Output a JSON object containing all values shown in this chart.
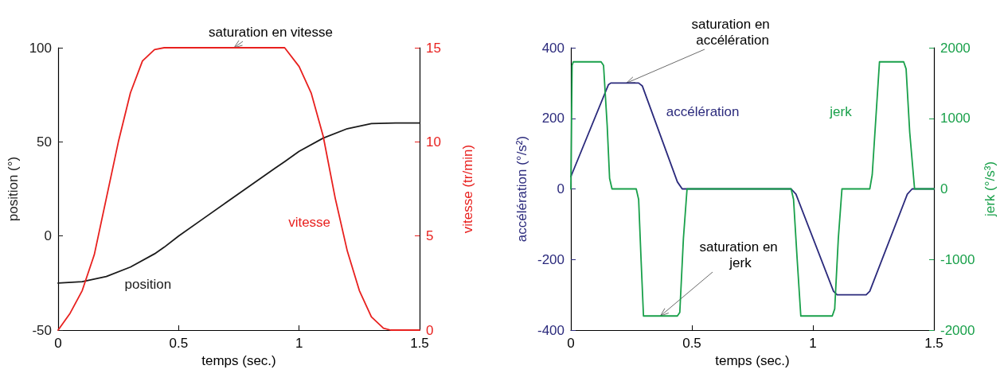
{
  "chart_data": [
    {
      "type": "line",
      "xlabel": "temps (sec.)",
      "ylabel": "position (°)",
      "y2label": "vitesse (tr/min)",
      "xlim": [
        0,
        1.5
      ],
      "xticks": [
        0,
        0.5,
        1,
        1.5
      ],
      "ylim": [
        -50,
        100
      ],
      "yticks": [
        -50,
        0,
        50,
        100
      ],
      "y2lim": [
        0,
        15
      ],
      "y2ticks": [
        0,
        5,
        10,
        15
      ],
      "grid": false,
      "series": [
        {
          "name": "position",
          "color": "#1a1a1a",
          "x": [
            0,
            0.1,
            0.2,
            0.3,
            0.4,
            0.44,
            0.5,
            0.6,
            0.7,
            0.8,
            0.9,
            0.94,
            1.0,
            1.1,
            1.2,
            1.3,
            1.4,
            1.5
          ],
          "values": [
            -25,
            -24.3,
            -21.5,
            -16.5,
            -9.5,
            -6,
            0,
            9,
            18,
            27,
            36,
            39.5,
            45,
            52,
            57,
            59.7,
            60,
            60
          ]
        },
        {
          "name": "vitesse",
          "color": "#e8201e",
          "axis": "y2",
          "x": [
            0,
            0.05,
            0.1,
            0.15,
            0.2,
            0.25,
            0.3,
            0.35,
            0.4,
            0.44,
            0.94,
            1.0,
            1.05,
            1.1,
            1.15,
            1.2,
            1.25,
            1.3,
            1.35,
            1.38,
            1.5
          ],
          "values": [
            0,
            0.9,
            2.1,
            4,
            7,
            10,
            12.6,
            14.3,
            14.9,
            15,
            15,
            14,
            12.6,
            10.3,
            7,
            4.2,
            2.1,
            0.7,
            0.1,
            0,
            0
          ]
        }
      ],
      "annotations": [
        {
          "text": "saturation en vitesse",
          "x": 0.73,
          "y": 100
        }
      ]
    },
    {
      "type": "line",
      "xlabel": "temps (sec.)",
      "ylabel": "accélération (°/s²)",
      "y2label": "jerk (°/s³)",
      "xlim": [
        0,
        1.5
      ],
      "xticks": [
        0,
        0.5,
        1,
        1.5
      ],
      "ylim": [
        -400,
        400
      ],
      "yticks": [
        -400,
        -200,
        0,
        200,
        400
      ],
      "y2lim": [
        -2000,
        2000
      ],
      "y2ticks": [
        -2000,
        -1000,
        0,
        1000,
        2000
      ],
      "grid": false,
      "series": [
        {
          "name": "accélération",
          "color": "#2b2a7c",
          "x": [
            0,
            0.155,
            0.165,
            0.28,
            0.295,
            0.44,
            0.46,
            0.91,
            0.93,
            1.085,
            1.1,
            1.22,
            1.235,
            1.39,
            1.41,
            1.5
          ],
          "values": [
            35,
            295,
            300,
            300,
            292,
            20,
            0,
            0,
            -15,
            -290,
            -300,
            -300,
            -290,
            -15,
            0,
            0
          ]
        },
        {
          "name": "jerk",
          "color": "#19a04a",
          "axis": "y2",
          "x": [
            0,
            0.005,
            0.01,
            0.125,
            0.135,
            0.15,
            0.16,
            0.17,
            0.27,
            0.28,
            0.29,
            0.3,
            0.44,
            0.45,
            0.465,
            0.48,
            0.91,
            0.92,
            0.935,
            0.95,
            1.08,
            1.09,
            1.105,
            1.12,
            1.235,
            1.245,
            1.26,
            1.275,
            1.375,
            1.385,
            1.4,
            1.42,
            1.5
          ],
          "values": [
            0,
            1750,
            1800,
            1800,
            1750,
            900,
            150,
            0,
            0,
            -150,
            -1000,
            -1800,
            -1800,
            -1750,
            -700,
            0,
            0,
            -150,
            -1000,
            -1800,
            -1800,
            -1700,
            -700,
            0,
            0,
            200,
            1000,
            1800,
            1800,
            1700,
            800,
            0,
            0
          ]
        }
      ],
      "annotations": [
        {
          "text": "saturation en accélération",
          "x": 0.23,
          "y": 300
        },
        {
          "text": "saturation en jerk",
          "x": 0.37,
          "y": -360
        }
      ]
    }
  ]
}
